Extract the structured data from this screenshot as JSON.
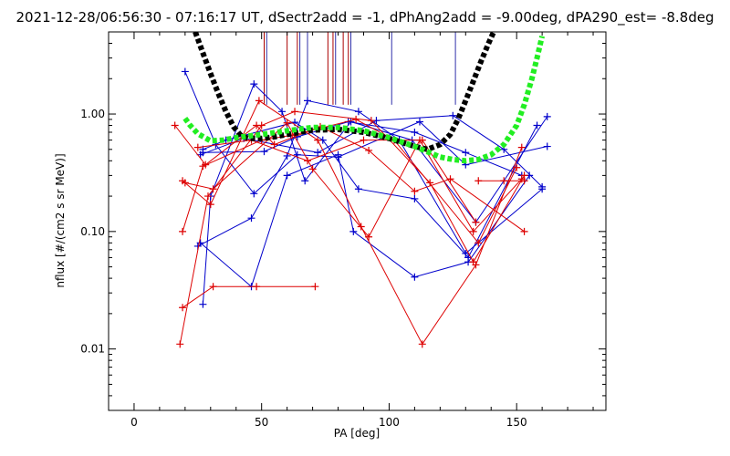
{
  "chart_data": {
    "type": "line",
    "title": "2021-12-28/06:56:30 - 07:16:17 UT, dSectr2add = -1, dPhAng2add = -9.00deg, dPA290_est=  -8.8deg",
    "xlabel": "PA [deg]",
    "ylabel": "nflux [#/(cm2 s sr MeV)]",
    "xlim": [
      -10,
      185
    ],
    "ylim": [
      0.003,
      5.0
    ],
    "yscale": "log",
    "x_ticks": [
      0,
      50,
      100,
      150
    ],
    "x_tick_labels": [
      "0",
      "50",
      "100",
      "150"
    ],
    "y_ticks": [
      0.01,
      0.1,
      1.0
    ],
    "y_tick_labels": [
      "0.01",
      "0.10",
      "1.00"
    ],
    "grid": false,
    "colors": {
      "blue": "#0000cc",
      "red": "#dd0000",
      "black_curve": "#000000",
      "green_curve": "#22ee22",
      "vline_red": "#aa0000",
      "vline_blue": "#3030aa"
    },
    "vertical_markers": [
      {
        "x": 51,
        "color": "red"
      },
      {
        "x": 52,
        "color": "blue"
      },
      {
        "x": 60,
        "color": "red"
      },
      {
        "x": 64,
        "color": "red"
      },
      {
        "x": 65,
        "color": "blue"
      },
      {
        "x": 68,
        "color": "blue"
      },
      {
        "x": 76,
        "color": "red"
      },
      {
        "x": 78,
        "color": "red"
      },
      {
        "x": 79,
        "color": "blue"
      },
      {
        "x": 82,
        "color": "red"
      },
      {
        "x": 84,
        "color": "red"
      },
      {
        "x": 85,
        "color": "blue"
      },
      {
        "x": 101,
        "color": "blue"
      },
      {
        "x": 126,
        "color": "blue"
      }
    ],
    "series": [
      {
        "color": "blue",
        "x": [
          20,
          32,
          47,
          64,
          80,
          112,
          130,
          162
        ],
        "y": [
          2.3,
          0.55,
          0.21,
          0.45,
          0.43,
          0.86,
          0.37,
          0.53
        ]
      },
      {
        "color": "blue",
        "x": [
          25,
          46,
          60,
          68,
          88,
          104,
          130,
          160
        ],
        "y": [
          0.075,
          0.13,
          0.44,
          1.3,
          1.05,
          0.6,
          0.065,
          0.23
        ]
      },
      {
        "color": "blue",
        "x": [
          27,
          36,
          63,
          74,
          88,
          110,
          131,
          158
        ],
        "y": [
          0.5,
          0.6,
          0.85,
          0.6,
          0.23,
          0.19,
          0.06,
          0.8
        ]
      },
      {
        "color": "blue",
        "x": [
          27,
          30,
          47,
          58,
          67,
          85,
          109,
          134,
          162
        ],
        "y": [
          0.024,
          0.2,
          1.8,
          1.05,
          0.27,
          0.86,
          0.6,
          0.12,
          0.95
        ]
      },
      {
        "color": "blue",
        "x": [
          26,
          46,
          60,
          80,
          86,
          110,
          131,
          155
        ],
        "y": [
          0.08,
          0.034,
          0.3,
          0.45,
          0.1,
          0.041,
          0.055,
          0.3
        ]
      },
      {
        "color": "blue",
        "x": [
          27,
          51,
          64,
          84,
          110,
          130,
          152
        ],
        "y": [
          0.47,
          0.48,
          0.64,
          0.86,
          0.7,
          0.47,
          0.3
        ]
      },
      {
        "color": "blue",
        "x": [
          26,
          43,
          72,
          95,
          125,
          145,
          160
        ],
        "y": [
          0.45,
          0.62,
          0.47,
          0.88,
          0.97,
          0.5,
          0.24
        ]
      },
      {
        "color": "red",
        "x": [
          16,
          28,
          48,
          55,
          73,
          92,
          110,
          124,
          153
        ],
        "y": [
          0.8,
          0.37,
          0.8,
          0.55,
          0.78,
          0.49,
          0.22,
          0.28,
          0.1
        ]
      },
      {
        "color": "red",
        "x": [
          19,
          30,
          49,
          72,
          89,
          113,
          134,
          152
        ],
        "y": [
          0.27,
          0.17,
          1.3,
          0.6,
          0.11,
          0.011,
          0.052,
          0.52
        ]
      },
      {
        "color": "red",
        "x": [
          20,
          31,
          60,
          70,
          92,
          112,
          133,
          152
        ],
        "y": [
          0.26,
          0.23,
          0.84,
          0.34,
          0.09,
          0.6,
          0.1,
          0.28
        ]
      },
      {
        "color": "red",
        "x": [
          19,
          27,
          50,
          62,
          87,
          102,
          135,
          150
        ],
        "y": [
          0.1,
          0.36,
          0.6,
          0.66,
          0.9,
          0.6,
          0.08,
          0.35
        ]
      },
      {
        "color": "red",
        "x": [
          19,
          31,
          48,
          71
        ],
        "y": [
          0.0225,
          0.034,
          0.034,
          0.034
        ]
      },
      {
        "color": "red",
        "x": [
          18,
          29,
          50,
          63,
          93,
          116,
          133,
          153
        ],
        "y": [
          0.011,
          0.2,
          0.8,
          1.05,
          0.88,
          0.26,
          0.055,
          0.3
        ]
      },
      {
        "color": "red",
        "x": [
          25,
          46,
          68,
          90,
          113,
          134
        ],
        "y": [
          0.52,
          0.6,
          0.4,
          0.6,
          0.6,
          0.12
        ]
      },
      {
        "color": "red",
        "x": [
          135,
          145,
          153
        ],
        "y": [
          0.27,
          0.27,
          0.27
        ]
      }
    ],
    "model_curves": [
      {
        "color": "black_curve",
        "x": [
          24,
          27,
          30,
          33,
          36,
          39,
          42,
          45,
          50,
          55,
          60,
          70,
          80,
          90,
          100,
          110,
          115,
          120,
          124,
          127,
          130,
          133,
          136,
          139,
          141
        ],
        "y": [
          5.0,
          3.3,
          2.2,
          1.5,
          1.05,
          0.78,
          0.65,
          0.62,
          0.62,
          0.64,
          0.67,
          0.73,
          0.74,
          0.7,
          0.62,
          0.53,
          0.5,
          0.55,
          0.67,
          0.9,
          1.3,
          1.9,
          2.8,
          4.0,
          5.0
        ]
      },
      {
        "color": "green_curve",
        "x": [
          20,
          22,
          25,
          30,
          35,
          40,
          45,
          50,
          60,
          70,
          80,
          90,
          100,
          110,
          120,
          125,
          130,
          135,
          140,
          145,
          150,
          153,
          156,
          158,
          160
        ],
        "y": [
          0.92,
          0.8,
          0.68,
          0.59,
          0.6,
          0.63,
          0.65,
          0.67,
          0.72,
          0.77,
          0.77,
          0.72,
          0.63,
          0.53,
          0.43,
          0.41,
          0.4,
          0.41,
          0.45,
          0.55,
          0.8,
          1.2,
          2.0,
          3.0,
          4.6
        ]
      }
    ]
  }
}
